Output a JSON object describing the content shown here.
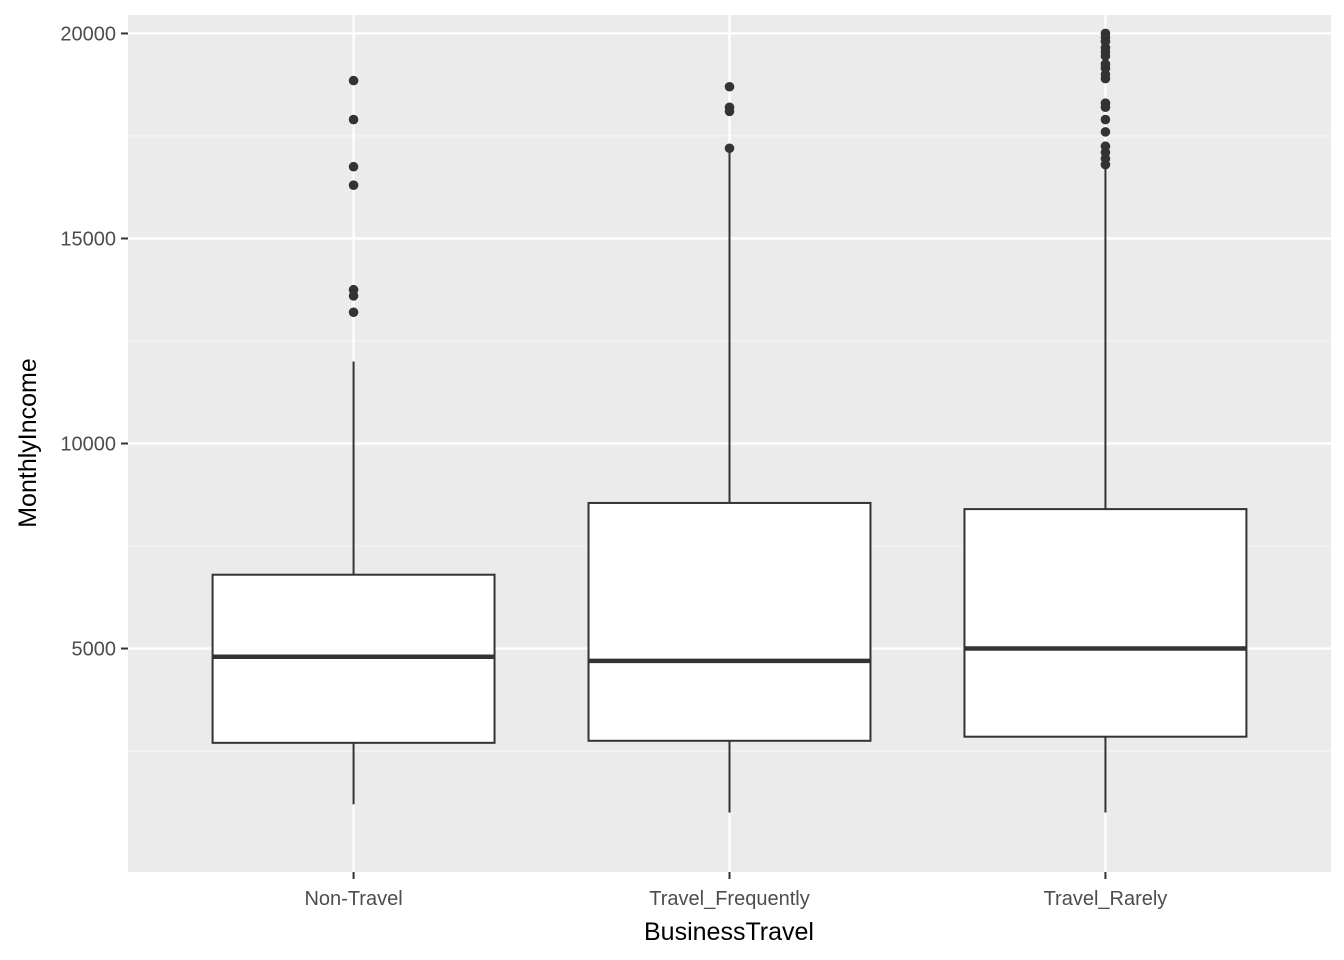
{
  "colors": {
    "panel_background": "#ebebeb",
    "grid_major": "#ffffff",
    "grid_minor": "#f5f5f5",
    "box_fill": "#ffffff",
    "box_stroke": "#333333",
    "outlier": "#333333",
    "tick_text": "#4d4d4d",
    "tick_mark": "#333333",
    "axis_title": "#000000"
  },
  "chart_data": {
    "type": "boxplot",
    "title": "",
    "xlabel": "BusinessTravel",
    "ylabel": "MonthlyIncome",
    "ylim": [
      -450,
      20450
    ],
    "yticks": [
      5000,
      10000,
      15000,
      20000
    ],
    "ytick_labels": [
      "5000",
      "10000",
      "15000",
      "20000"
    ],
    "categories": [
      "Non-Travel",
      "Travel_Frequently",
      "Travel_Rarely"
    ],
    "boxes": [
      {
        "category": "Non-Travel",
        "whisker_low": 1200,
        "q1": 2700,
        "median": 4800,
        "q3": 6800,
        "whisker_high": 12000,
        "outliers": [
          13200,
          13600,
          13750,
          16300,
          16750,
          17900,
          18850
        ]
      },
      {
        "category": "Travel_Frequently",
        "whisker_low": 1000,
        "q1": 2750,
        "median": 4700,
        "q3": 8550,
        "whisker_high": 17100,
        "outliers": [
          17200,
          18100,
          18200,
          18700
        ]
      },
      {
        "category": "Travel_Rarely",
        "whisker_low": 1000,
        "q1": 2850,
        "median": 5000,
        "q3": 8400,
        "whisker_high": 16700,
        "outliers": [
          16800,
          16950,
          17100,
          17250,
          17600,
          17900,
          18200,
          18300,
          18900,
          19000,
          19150,
          19250,
          19450,
          19550,
          19650,
          19800,
          19900,
          20000
        ]
      }
    ],
    "grid": true,
    "legend": "none"
  }
}
